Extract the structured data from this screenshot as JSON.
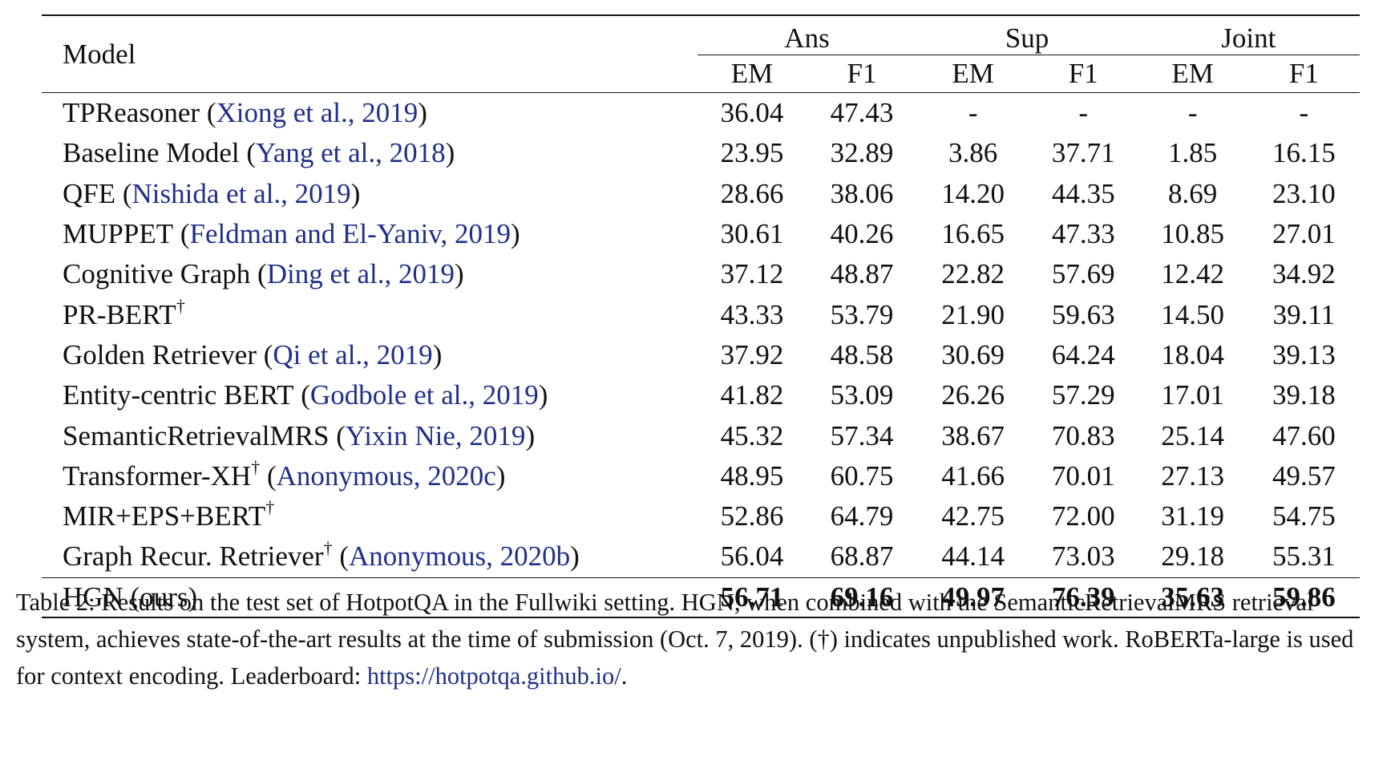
{
  "table": {
    "model_header": "Model",
    "groups": [
      "Ans",
      "Sup",
      "Joint"
    ],
    "subheaders": [
      "EM",
      "F1",
      "EM",
      "F1",
      "EM",
      "F1"
    ],
    "rows": [
      {
        "name": "TPReasoner",
        "dagger": "",
        "cite_open": " (",
        "cite": "Xiong et al., 2019",
        "cite_close": ")",
        "values": [
          "36.04",
          "47.43",
          "-",
          "-",
          "-",
          "-"
        ]
      },
      {
        "name": "Baseline Model",
        "dagger": "",
        "cite_open": " (",
        "cite": "Yang et al., 2018",
        "cite_close": ")",
        "values": [
          "23.95",
          "32.89",
          "3.86",
          "37.71",
          "1.85",
          "16.15"
        ]
      },
      {
        "name": "QFE",
        "dagger": "",
        "cite_open": " (",
        "cite": "Nishida et al., 2019",
        "cite_close": ")",
        "values": [
          "28.66",
          "38.06",
          "14.20",
          "44.35",
          "8.69",
          "23.10"
        ]
      },
      {
        "name": "MUPPET",
        "dagger": "",
        "cite_open": " (",
        "cite": "Feldman and El-Yaniv, 2019",
        "cite_close": ")",
        "values": [
          "30.61",
          "40.26",
          "16.65",
          "47.33",
          "10.85",
          "27.01"
        ]
      },
      {
        "name": "Cognitive Graph",
        "dagger": "",
        "cite_open": " (",
        "cite": "Ding et al., 2019",
        "cite_close": ")",
        "values": [
          "37.12",
          "48.87",
          "22.82",
          "57.69",
          "12.42",
          "34.92"
        ]
      },
      {
        "name": "PR-BERT",
        "dagger": "†",
        "cite_open": "",
        "cite": "",
        "cite_close": "",
        "values": [
          "43.33",
          "53.79",
          "21.90",
          "59.63",
          "14.50",
          "39.11"
        ]
      },
      {
        "name": "Golden Retriever",
        "dagger": "",
        "cite_open": " (",
        "cite": "Qi et al., 2019",
        "cite_close": ")",
        "values": [
          "37.92",
          "48.58",
          "30.69",
          "64.24",
          "18.04",
          "39.13"
        ]
      },
      {
        "name": "Entity-centric BERT",
        "dagger": "",
        "cite_open": " (",
        "cite": "Godbole et al., 2019",
        "cite_close": ")",
        "values": [
          "41.82",
          "53.09",
          "26.26",
          "57.29",
          "17.01",
          "39.18"
        ]
      },
      {
        "name": "SemanticRetrievalMRS",
        "dagger": "",
        "cite_open": " (",
        "cite": "Yixin Nie, 2019",
        "cite_close": ")",
        "values": [
          "45.32",
          "57.34",
          "38.67",
          "70.83",
          "25.14",
          "47.60"
        ]
      },
      {
        "name": "Transformer-XH",
        "dagger": "†",
        "cite_open": " (",
        "cite": "Anonymous, 2020c",
        "cite_close": ")",
        "values": [
          "48.95",
          "60.75",
          "41.66",
          "70.01",
          "27.13",
          "49.57"
        ]
      },
      {
        "name": "MIR+EPS+BERT",
        "dagger": "†",
        "cite_open": "",
        "cite": "",
        "cite_close": "",
        "values": [
          "52.86",
          "64.79",
          "42.75",
          "72.00",
          "31.19",
          "54.75"
        ]
      },
      {
        "name": "Graph Recur. Retriever",
        "dagger": "†",
        "cite_open": " (",
        "cite": "Anonymous, 2020b",
        "cite_close": ")",
        "values": [
          "56.04",
          "68.87",
          "44.14",
          "73.03",
          "29.18",
          "55.31"
        ]
      }
    ],
    "ours": {
      "name": "HGN (ours)",
      "values": [
        "56.71",
        "69.16",
        "49.97",
        "76.39",
        "35.63",
        "59.86"
      ]
    }
  },
  "caption": {
    "text": "Table 2:  Results on the test set of HotpotQA in the Fullwiki setting. HGN, when combined with the SemanticRetrievalMRS retrieval system, achieves state-of-the-art results at the time of submission (Oct. 7, 2019). (†) indicates unpublished work. RoBERTa-large is used for context encoding. Leaderboard: ",
    "link": "https://hotpotqa.github.io/",
    "end": "."
  },
  "colors": {
    "citation": "#1f2f8c",
    "text": "#111111"
  }
}
